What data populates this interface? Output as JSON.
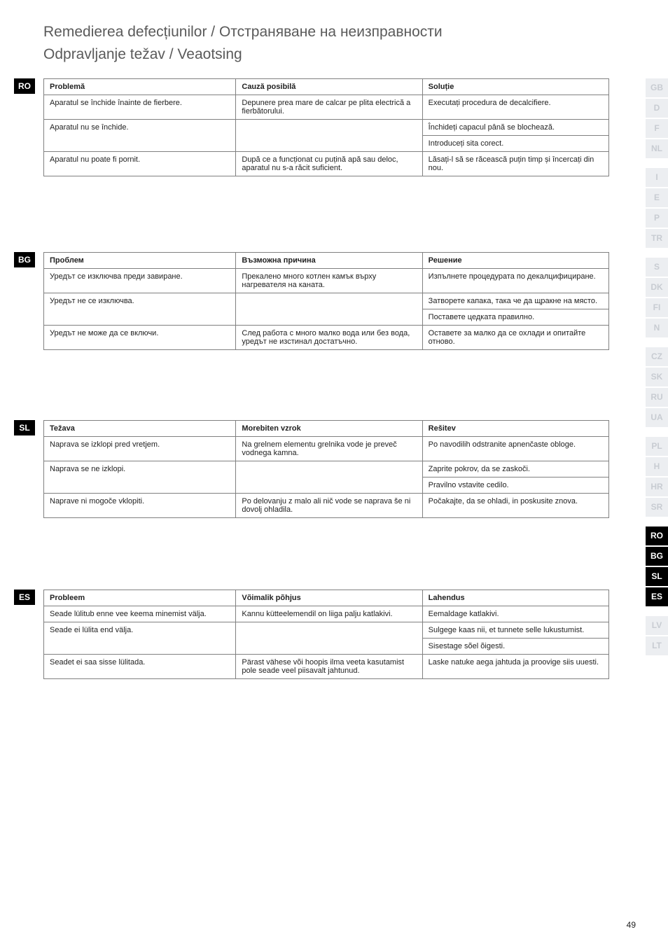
{
  "title_line1": "Remedierea defecțiunilor  /  Отстраняване на неизправности",
  "title_line2": "Odpravljanje težav  /  Veaotsing",
  "sections": {
    "ro": {
      "tab": "RO",
      "headers": [
        "Problemă",
        "Cauză posibilă",
        "Soluție"
      ],
      "rows": [
        [
          "Aparatul se închide înainte de fierbere.",
          "Depunere prea mare de calcar pe plita electrică a fierbătorului.",
          "Executați procedura de decalcifiere."
        ],
        [
          "Aparatul nu se închide.",
          "",
          "Închideți capacul până se blochează."
        ],
        [
          "",
          "",
          "Introduceți sita corect."
        ],
        [
          "Aparatul nu poate fi pornit.",
          "După ce a funcționat cu puțină apă sau deloc, aparatul nu s-a răcit suficient.",
          "Lăsați-l să se răcească puțin timp și încercați din nou."
        ]
      ]
    },
    "bg": {
      "tab": "BG",
      "headers": [
        "Проблем",
        "Възможна причина",
        "Решение"
      ],
      "rows": [
        [
          "Уредът се изключва преди завиране.",
          "Прекалено много котлен камък върху нагревателя на каната.",
          "Изпълнете процедурата по декалцифициране."
        ],
        [
          "Уредът не се изключва.",
          "",
          "Затворете капака, така че да щракне на място."
        ],
        [
          "",
          "",
          "Поставете цедката правилно."
        ],
        [
          "Уредът не може да се включи.",
          "След работа с много малко вода или без вода, уредът не изстинал достатъчно.",
          "Оставете за малко да се охлади и опитайте отново."
        ]
      ]
    },
    "sl": {
      "tab": "SL",
      "headers": [
        "Težava",
        "Morebiten vzrok",
        "Rešitev"
      ],
      "rows": [
        [
          "Naprava se izklopi pred vretjem.",
          "Na grelnem elementu grelnika vode je preveč vodnega kamna.",
          "Po navodilih odstranite apnenčaste obloge."
        ],
        [
          "Naprava se ne izklopi.",
          "",
          "Zaprite pokrov, da se zaskoči."
        ],
        [
          "",
          "",
          "Pravilno vstavite cedilo."
        ],
        [
          "Naprave ni mogoče vklopiti.",
          "Po delovanju z malo ali nič vode se naprava še ni dovolj ohladila.",
          "Počakajte, da se ohladi, in poskusite znova."
        ]
      ]
    },
    "es": {
      "tab": "ES",
      "headers": [
        "Probleem",
        "Võimalik põhjus",
        "Lahendus"
      ],
      "rows": [
        [
          "Seade lülitub enne vee keema minemist välja.",
          "Kannu kütteelemendil on liiga palju katlakivi.",
          "Eemaldage katlakivi."
        ],
        [
          "Seade ei lülita end välja.",
          "",
          "Sulgege kaas nii, et tunnete selle lukustumist."
        ],
        [
          "",
          "",
          "Sisestage sõel õigesti."
        ],
        [
          "Seadet ei saa sisse lülitada.",
          "Pärast vähese või hoopis ilma veeta kasutamist pole seade veel piisavalt jahtunud.",
          "Laske natuke aega jahtuda ja proovige siis uuesti."
        ]
      ]
    }
  },
  "right_tabs": [
    {
      "t": "GB",
      "g": false
    },
    {
      "t": "D",
      "g": false
    },
    {
      "t": "F",
      "g": false
    },
    {
      "t": "NL",
      "g": true
    },
    {
      "t": "I",
      "g": false
    },
    {
      "t": "E",
      "g": false
    },
    {
      "t": "P",
      "g": false
    },
    {
      "t": "TR",
      "g": true
    },
    {
      "t": "S",
      "g": false
    },
    {
      "t": "DK",
      "g": false
    },
    {
      "t": "FI",
      "g": false
    },
    {
      "t": "N",
      "g": true
    },
    {
      "t": "CZ",
      "g": false
    },
    {
      "t": "SK",
      "g": false
    },
    {
      "t": "RU",
      "g": false
    },
    {
      "t": "UA",
      "g": true
    },
    {
      "t": "PL",
      "g": false
    },
    {
      "t": "H",
      "g": false
    },
    {
      "t": "HR",
      "g": false
    },
    {
      "t": "SR",
      "g": true
    },
    {
      "t": "RO",
      "g": false
    },
    {
      "t": "BG",
      "g": false
    },
    {
      "t": "SL",
      "g": false
    },
    {
      "t": "ES",
      "g": true
    },
    {
      "t": "LV",
      "g": false
    },
    {
      "t": "LT",
      "g": false
    }
  ],
  "active_tabs": [
    "RO",
    "BG",
    "SL",
    "ES"
  ],
  "page_number": "49",
  "layout": {
    "section_tops": {
      "ro": 112,
      "bg": 360,
      "sl": 600,
      "es": 842
    }
  },
  "colors": {
    "text": "#222222",
    "title": "#5a5a5a",
    "border": "#808080",
    "tab_active_bg": "#000000",
    "tab_active_fg": "#ffffff",
    "tab_inactive_bg": "#eceef1",
    "tab_inactive_fg": "#c8ccd2"
  }
}
